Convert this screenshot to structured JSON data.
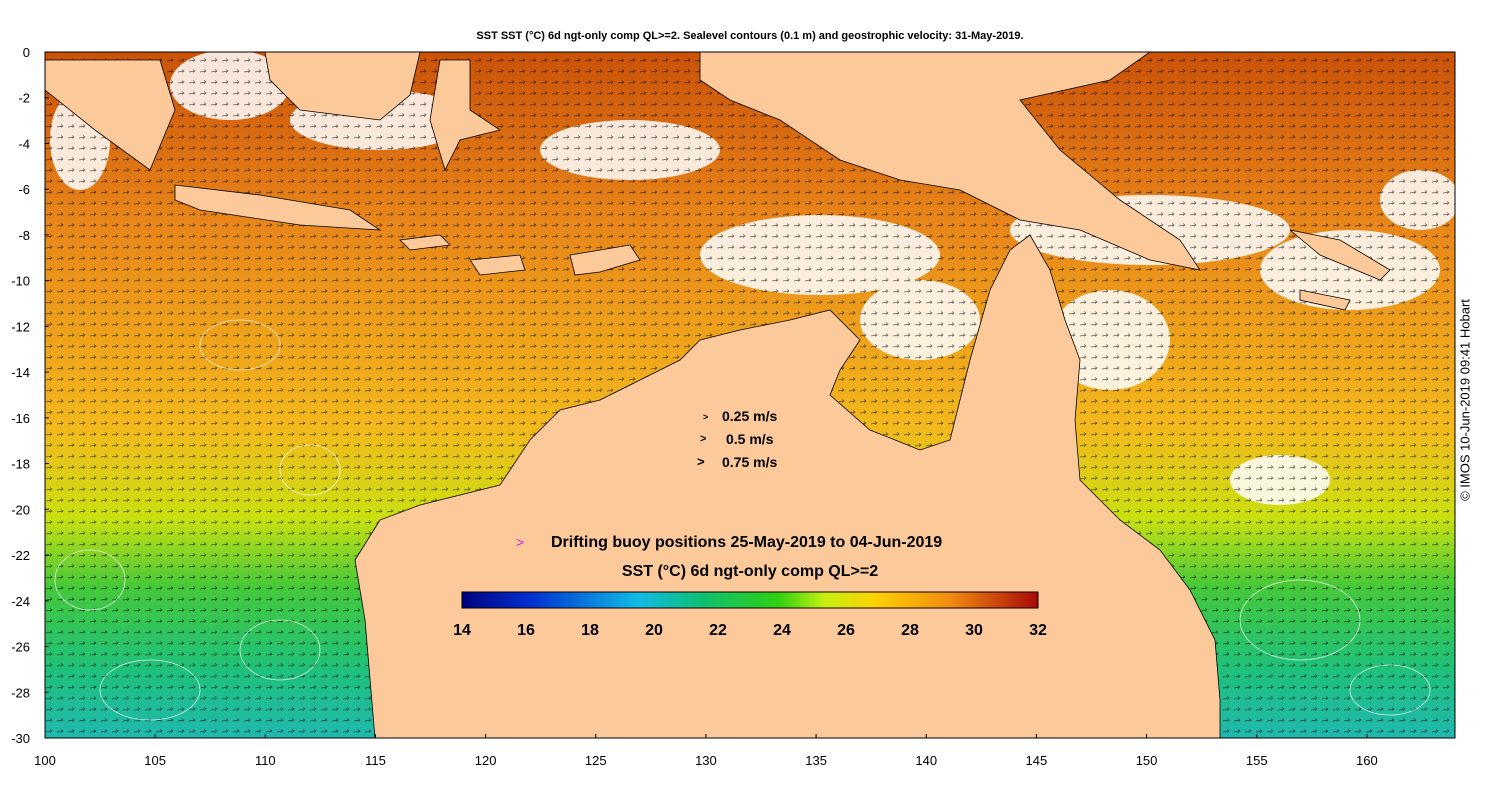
{
  "title": "SST SST (°C) 6d ngt-only comp QL>=2. Sealevel contours (0.1 m) and geostrophic velocity: 31-May-2019.",
  "x_ticks": [
    "100",
    "105",
    "110",
    "115",
    "120",
    "125",
    "130",
    "135",
    "140",
    "145",
    "150",
    "155",
    "160"
  ],
  "y_ticks": [
    "0",
    "-2",
    "-4",
    "-6",
    "-8",
    "-10",
    "-12",
    "-14",
    "-16",
    "-18",
    "-20",
    "-22",
    "-24",
    "-26",
    "-28",
    "-30"
  ],
  "velocity_legend": [
    {
      "marker": ">",
      "label": "0.25 m/s"
    },
    {
      "marker": ">",
      "label": "0.5 m/s"
    },
    {
      "marker": ">",
      "label": "0.75 m/s"
    }
  ],
  "buoy_legend": {
    "marker": ">",
    "label": "Drifting buoy positions 25-May-2019 to 04-Jun-2019",
    "color": "#e020e0"
  },
  "colorbar": {
    "title": "SST (°C) 6d ngt-only comp QL>=2",
    "min": 14,
    "max": 32,
    "ticks": [
      "14",
      "16",
      "18",
      "20",
      "22",
      "24",
      "26",
      "28",
      "30",
      "32"
    ]
  },
  "colors": {
    "land": "#fbc99a",
    "warm": "#e8861a",
    "hot": "#c95208",
    "mid": "#f2b91c",
    "cool": "#8ad21a",
    "cold": "#1fc07a",
    "cloud": "#ffffff"
  },
  "credit": "© IMOS 10-Jun-2019 09:41 Hobart"
}
